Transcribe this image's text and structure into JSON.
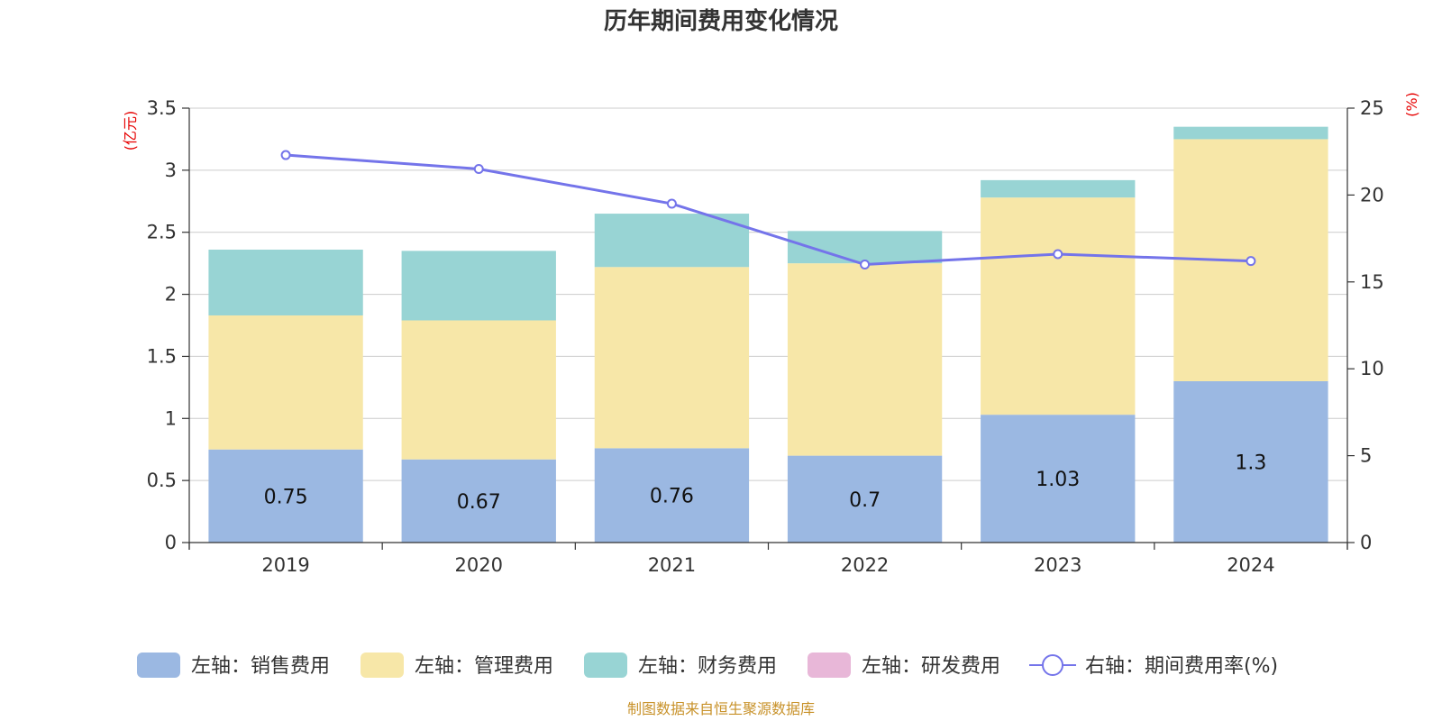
{
  "chart_data": {
    "type": "bar",
    "title": "历年期间费用变化情况",
    "categories": [
      "2019",
      "2020",
      "2021",
      "2022",
      "2023",
      "2024"
    ],
    "left_axis": {
      "unit": "(亿元)",
      "ylim": [
        0,
        3.5
      ],
      "ticks": [
        "0",
        "0.5",
        "1",
        "1.5",
        "2",
        "2.5",
        "3",
        "3.5"
      ]
    },
    "right_axis": {
      "unit": "(%)",
      "ylim": [
        0,
        25
      ],
      "ticks": [
        "0",
        "5",
        "10",
        "15",
        "20",
        "25"
      ]
    },
    "series": [
      {
        "name": "左轴：销售费用",
        "type": "bar",
        "axis": "left",
        "color": "#9bb8e2",
        "values": [
          0.75,
          0.67,
          0.76,
          0.7,
          1.03,
          1.3
        ],
        "labels": [
          "0.75",
          "0.67",
          "0.76",
          "0.7",
          "1.03",
          "1.3"
        ]
      },
      {
        "name": "左轴：管理费用",
        "type": "bar",
        "axis": "left",
        "color": "#f7e7a8",
        "values": [
          1.08,
          1.12,
          1.46,
          1.55,
          1.75,
          1.95
        ]
      },
      {
        "name": "左轴：财务费用",
        "type": "bar",
        "axis": "left",
        "color": "#98d4d4",
        "values": [
          0.53,
          0.56,
          0.43,
          0.26,
          0.14,
          0.1
        ]
      },
      {
        "name": "左轴：研发费用",
        "type": "bar",
        "axis": "left",
        "color": "#e8b7d8",
        "values": [
          0,
          0,
          0,
          0,
          0,
          0
        ]
      },
      {
        "name": "右轴：期间费用率(%)",
        "type": "line",
        "axis": "right",
        "color": "#7474ea",
        "values": [
          22.3,
          21.5,
          19.5,
          16.0,
          16.6,
          16.2
        ]
      }
    ],
    "grid": true,
    "legend_position": "bottom"
  },
  "footer": {
    "source": "制图数据来自恒生聚源数据库"
  }
}
